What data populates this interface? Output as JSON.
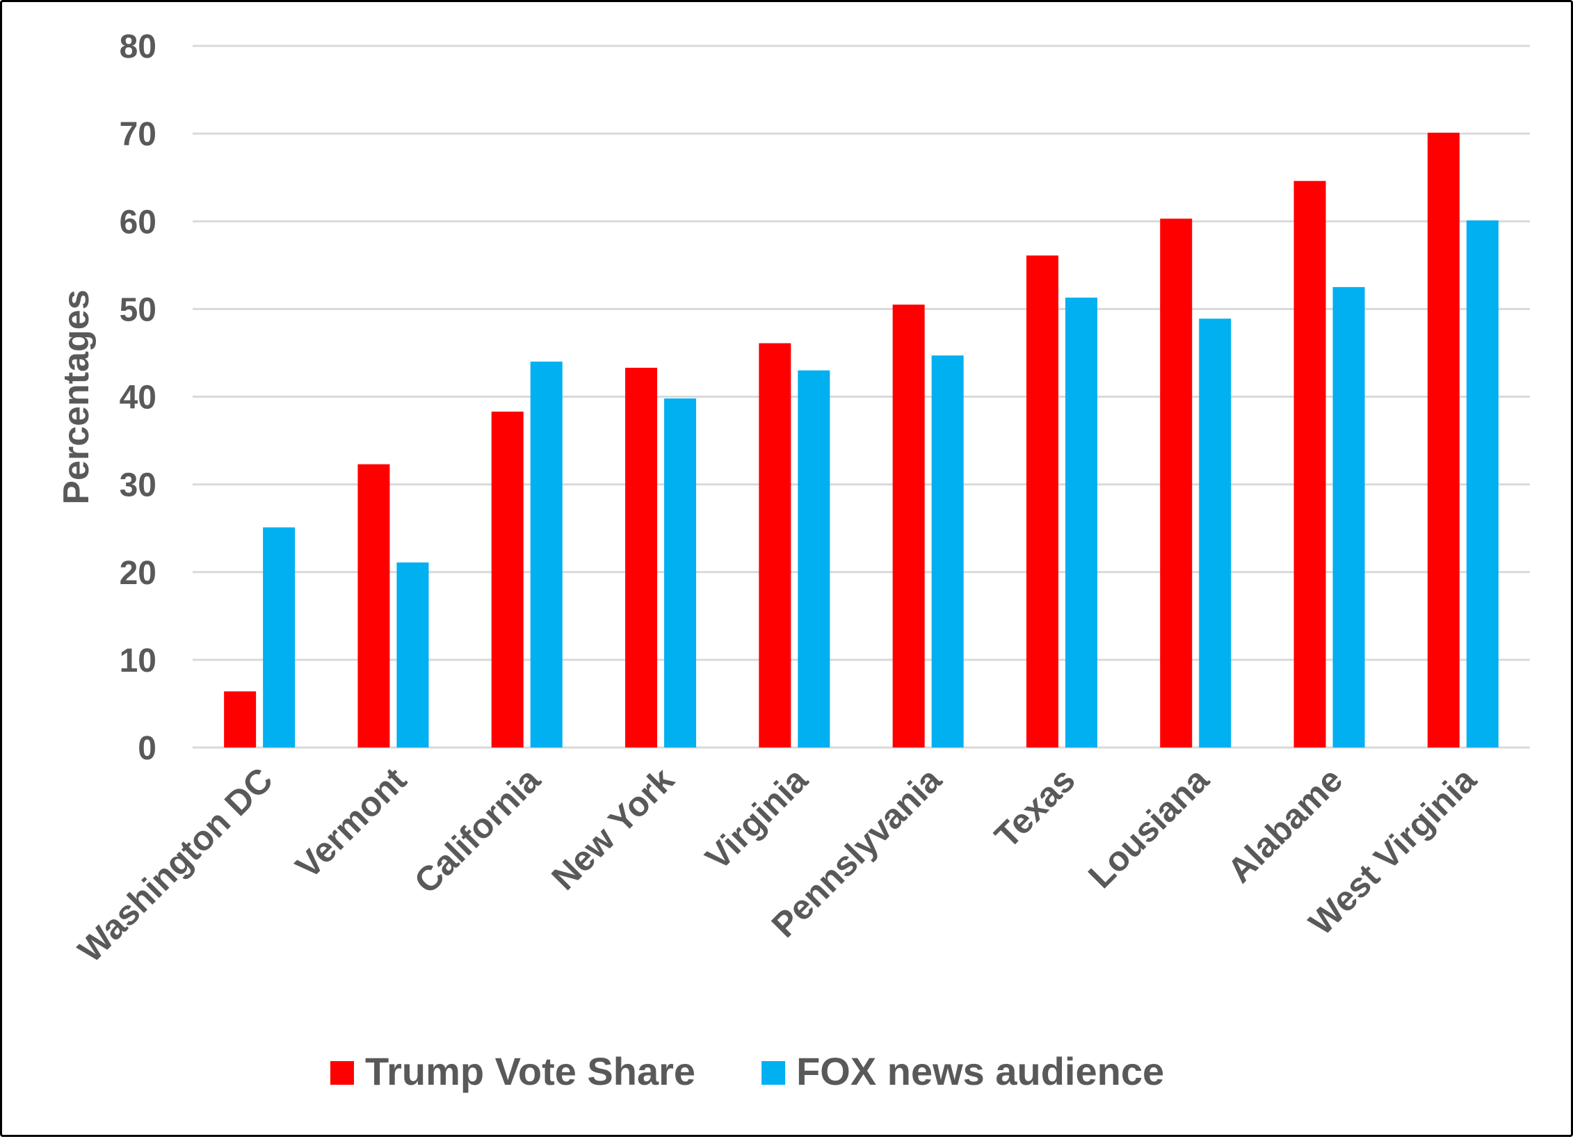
{
  "chart_data": {
    "type": "bar",
    "title": "",
    "xlabel": "",
    "ylabel": "Percentages",
    "ylim": [
      0,
      80
    ],
    "yticks": [
      0,
      10,
      20,
      30,
      40,
      50,
      60,
      70,
      80
    ],
    "grid": true,
    "legend_placement": "bottom",
    "categories": [
      "Washington DC",
      "Vermont",
      "California",
      "New York",
      "Virginia",
      "Pennslyvania",
      "Texas",
      "Lousiana",
      "Alabame",
      "West Virginia"
    ],
    "series": [
      {
        "name": "Trump Vote Share",
        "color": "#ff0000",
        "values": [
          6.4,
          32.3,
          38.3,
          43.3,
          46.1,
          50.5,
          56.1,
          60.3,
          64.6,
          70.1
        ]
      },
      {
        "name": "FOX news audience",
        "color": "#00b0f0",
        "values": [
          25.1,
          21.1,
          44.0,
          39.8,
          43.0,
          44.7,
          51.3,
          48.9,
          52.5,
          60.1
        ]
      }
    ]
  }
}
